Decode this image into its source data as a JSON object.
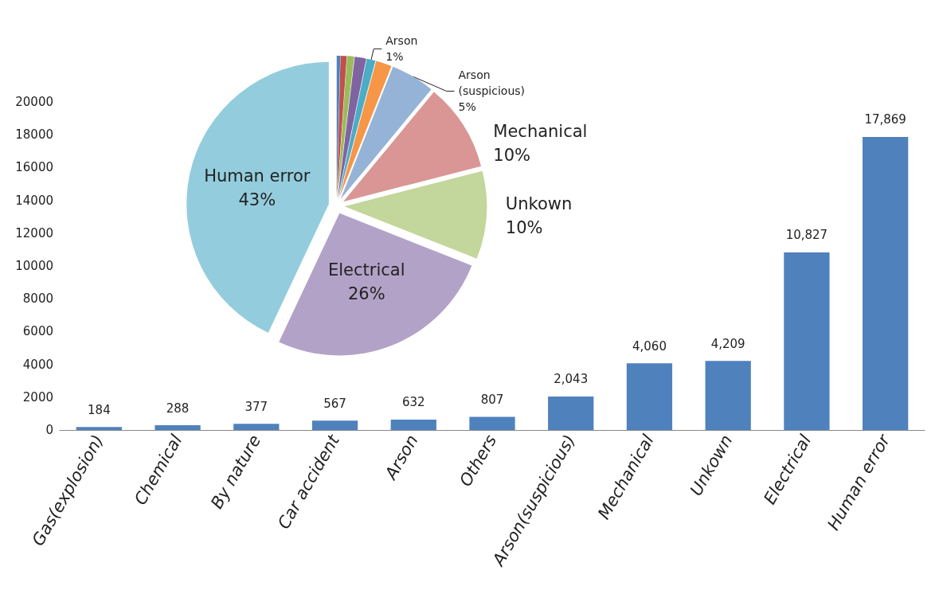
{
  "chart_data": [
    {
      "type": "bar",
      "categories": [
        "Gas(explosion)",
        "Chemical",
        "By nature",
        "Car accident",
        "Arson",
        "Others",
        "Arson(suspicious)",
        "Mechanical",
        "Unkown",
        "Electrical",
        "Human error"
      ],
      "values": [
        184,
        288,
        377,
        567,
        632,
        807,
        2043,
        4060,
        4209,
        10827,
        17869
      ],
      "value_labels": [
        "184",
        "288",
        "377",
        "567",
        "632",
        "807",
        "2,043",
        "4,060",
        "4,209",
        "10,827",
        "17,869"
      ],
      "color": "#4f81bd",
      "ylim": [
        0,
        20000
      ],
      "yticks": [
        0,
        2000,
        4000,
        6000,
        8000,
        10000,
        12000,
        14000,
        16000,
        18000,
        20000
      ],
      "grid": false,
      "legend": false
    },
    {
      "type": "pie",
      "categories": [
        null,
        null,
        null,
        null,
        "Arson",
        null,
        "Arson\n(suspicious)",
        "Mechanical",
        "Unkown",
        "Electrical",
        "Human error"
      ],
      "values": [
        0.4,
        0.7,
        0.8,
        1.3,
        1,
        1.8,
        5,
        10,
        10,
        26,
        43
      ],
      "value_labels": [
        null,
        null,
        null,
        null,
        "1%",
        null,
        "5%",
        "10%",
        "10%",
        "26%",
        "43%"
      ],
      "colors": [
        "#4f81bd",
        "#c0504d",
        "#9bbb59",
        "#8064a2",
        "#4bacc6",
        "#f79646",
        "#95b3d7",
        "#d99694",
        "#c3d69b",
        "#b3a2c7",
        "#93cddd"
      ],
      "legend": false
    }
  ]
}
